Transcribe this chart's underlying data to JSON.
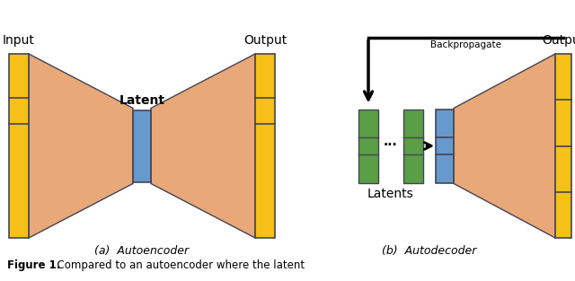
{
  "fig_width": 6.4,
  "fig_height": 3.13,
  "dpi": 100,
  "bg_color": "#ffffff",
  "orange_color": "#E8A878",
  "yellow_color": "#F5C018",
  "blue_color": "#6699CC",
  "green_color": "#5A9E45",
  "border_color": "#444455",
  "caption_a": "(a)  Autoencoder",
  "caption_b": "(b)  Autodecoder",
  "figure_caption_bold": "Figure 1.",
  "figure_caption_normal": "  Compared to an autoencoder where the latent",
  "label_input": "Input",
  "label_output_a": "Output",
  "label_output_b": "Output",
  "label_latent": "Latent",
  "label_latents": "Latents",
  "label_backprop": "Backpropagate"
}
